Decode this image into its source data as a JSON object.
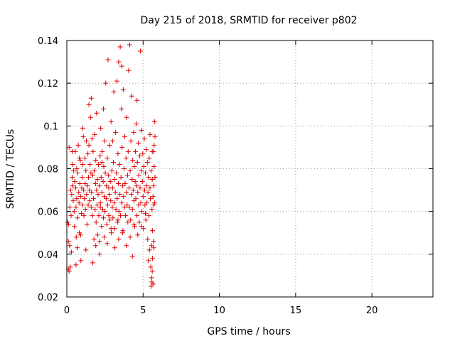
{
  "chart_data": {
    "type": "scatter",
    "title": "Day 215 of 2018, SRMTID for receiver p802",
    "xlabel": "GPS time / hours",
    "ylabel": "SRMTID / TECUs",
    "xlim": [
      0,
      24
    ],
    "ylim": [
      0.02,
      0.14
    ],
    "xticks": [
      0,
      5,
      10,
      15,
      20
    ],
    "xtick_labels": [
      "0",
      "5",
      "10",
      "15",
      "20"
    ],
    "yticks": [
      0.02,
      0.04,
      0.06,
      0.08,
      0.1,
      0.12,
      0.14
    ],
    "ytick_labels": [
      "0.02",
      "0.04",
      "0.06",
      "0.08",
      "0.1",
      "0.12",
      "0.14"
    ],
    "grid": true,
    "marker": "+",
    "series": [
      {
        "name": "SRMTID",
        "color": "#dd0000",
        "points": [
          [
            0.05,
            0.055
          ],
          [
            0.1,
            0.046
          ],
          [
            0.1,
            0.033
          ],
          [
            0.12,
            0.054
          ],
          [
            0.15,
            0.032
          ],
          [
            0.18,
            0.044
          ],
          [
            0.2,
            0.062
          ],
          [
            0.22,
            0.034
          ],
          [
            0.25,
            0.07
          ],
          [
            0.28,
            0.058
          ],
          [
            0.3,
            0.041
          ],
          [
            0.32,
            0.068
          ],
          [
            0.35,
            0.076
          ],
          [
            0.38,
            0.072
          ],
          [
            0.4,
            0.082
          ],
          [
            0.42,
            0.065
          ],
          [
            0.45,
            0.079
          ],
          [
            0.48,
            0.06
          ],
          [
            0.5,
            0.053
          ],
          [
            0.52,
            0.074
          ],
          [
            0.55,
            0.088
          ],
          [
            0.58,
            0.071
          ],
          [
            0.6,
            0.062
          ],
          [
            0.62,
            0.048
          ],
          [
            0.65,
            0.066
          ],
          [
            0.68,
            0.043
          ],
          [
            0.7,
            0.057
          ],
          [
            0.72,
            0.078
          ],
          [
            0.75,
            0.091
          ],
          [
            0.78,
            0.069
          ],
          [
            0.8,
            0.064
          ],
          [
            0.82,
            0.05
          ],
          [
            0.85,
            0.073
          ],
          [
            0.88,
            0.084
          ],
          [
            0.9,
            0.067
          ],
          [
            0.92,
            0.037
          ],
          [
            0.95,
            0.059
          ],
          [
            0.98,
            0.071
          ],
          [
            1.0,
            0.076
          ],
          [
            1.02,
            0.063
          ],
          [
            1.05,
            0.082
          ],
          [
            1.08,
            0.095
          ],
          [
            1.1,
            0.07
          ],
          [
            1.12,
            0.058
          ],
          [
            1.15,
            0.066
          ],
          [
            1.18,
            0.085
          ],
          [
            1.2,
            0.073
          ],
          [
            1.22,
            0.061
          ],
          [
            1.25,
            0.079
          ],
          [
            1.28,
            0.093
          ],
          [
            1.3,
            0.068
          ],
          [
            1.32,
            0.054
          ],
          [
            1.35,
            0.072
          ],
          [
            1.38,
            0.087
          ],
          [
            1.4,
            0.063
          ],
          [
            1.42,
            0.076
          ],
          [
            1.45,
            0.091
          ],
          [
            1.48,
            0.07
          ],
          [
            1.5,
            0.065
          ],
          [
            1.52,
            0.082
          ],
          [
            1.55,
            0.104
          ],
          [
            1.58,
            0.078
          ],
          [
            1.6,
            0.113
          ],
          [
            1.62,
            0.069
          ],
          [
            1.65,
            0.094
          ],
          [
            1.68,
            0.058
          ],
          [
            1.7,
            0.077
          ],
          [
            1.72,
            0.088
          ],
          [
            1.75,
            0.066
          ],
          [
            1.78,
            0.047
          ],
          [
            1.8,
            0.079
          ],
          [
            1.82,
            0.096
          ],
          [
            1.85,
            0.061
          ],
          [
            1.88,
            0.073
          ],
          [
            1.9,
            0.084
          ],
          [
            1.92,
            0.055
          ],
          [
            1.95,
            0.07
          ],
          [
            1.98,
            0.063
          ],
          [
            2.0,
            0.075
          ],
          [
            2.02,
            0.049
          ],
          [
            2.05,
            0.068
          ],
          [
            2.08,
            0.082
          ],
          [
            2.1,
            0.058
          ],
          [
            2.12,
            0.072
          ],
          [
            2.15,
            0.046
          ],
          [
            2.18,
            0.086
          ],
          [
            2.2,
            0.064
          ],
          [
            2.22,
            0.099
          ],
          [
            2.25,
            0.076
          ],
          [
            2.28,
            0.053
          ],
          [
            2.3,
            0.069
          ],
          [
            2.32,
            0.088
          ],
          [
            2.35,
            0.061
          ],
          [
            2.38,
            0.074
          ],
          [
            2.4,
            0.057
          ],
          [
            2.42,
            0.081
          ],
          [
            2.45,
            0.067
          ],
          [
            2.48,
            0.093
          ],
          [
            2.5,
            0.06
          ],
          [
            2.52,
            0.078
          ],
          [
            2.55,
            0.12
          ],
          [
            2.58,
            0.066
          ],
          [
            2.6,
            0.072
          ],
          [
            2.62,
            0.054
          ],
          [
            2.65,
            0.085
          ],
          [
            2.68,
            0.063
          ],
          [
            2.7,
            0.131
          ],
          [
            2.72,
            0.077
          ],
          [
            2.75,
            0.058
          ],
          [
            2.78,
            0.068
          ],
          [
            2.8,
            0.091
          ],
          [
            2.82,
            0.056
          ],
          [
            2.85,
            0.074
          ],
          [
            2.88,
            0.065
          ],
          [
            2.9,
            0.102
          ],
          [
            2.92,
            0.05
          ],
          [
            2.95,
            0.079
          ],
          [
            2.98,
            0.062
          ],
          [
            3.0,
            0.071
          ],
          [
            3.02,
            0.057
          ],
          [
            3.05,
            0.083
          ],
          [
            3.08,
            0.116
          ],
          [
            3.1,
            0.064
          ],
          [
            3.12,
            0.075
          ],
          [
            3.15,
            0.052
          ],
          [
            3.18,
            0.069
          ],
          [
            3.2,
            0.097
          ],
          [
            3.22,
            0.061
          ],
          [
            3.25,
            0.078
          ],
          [
            3.28,
            0.121
          ],
          [
            3.3,
            0.066
          ],
          [
            3.32,
            0.055
          ],
          [
            3.35,
            0.087
          ],
          [
            3.38,
            0.073
          ],
          [
            3.4,
            0.13
          ],
          [
            3.42,
            0.06
          ],
          [
            3.45,
            0.082
          ],
          [
            3.48,
            0.068
          ],
          [
            3.5,
            0.137
          ],
          [
            3.52,
            0.058
          ],
          [
            3.55,
            0.076
          ],
          [
            3.58,
            0.108
          ],
          [
            3.6,
            0.064
          ],
          [
            3.62,
            0.09
          ],
          [
            3.65,
            0.072
          ],
          [
            3.68,
            0.051
          ],
          [
            3.7,
            0.117
          ],
          [
            3.72,
            0.067
          ],
          [
            3.75,
            0.08
          ],
          [
            3.78,
            0.062
          ],
          [
            3.8,
            0.095
          ],
          [
            3.82,
            0.073
          ],
          [
            3.85,
            0.058
          ],
          [
            3.88,
            0.085
          ],
          [
            3.9,
            0.069
          ],
          [
            3.92,
            0.104
          ],
          [
            3.95,
            0.063
          ],
          [
            3.98,
            0.077
          ],
          [
            4.0,
            0.055
          ],
          [
            4.02,
            0.088
          ],
          [
            4.05,
            0.126
          ],
          [
            4.08,
            0.071
          ],
          [
            4.1,
            0.062
          ],
          [
            4.12,
            0.138
          ],
          [
            4.15,
            0.079
          ],
          [
            4.18,
            0.056
          ],
          [
            4.2,
            0.093
          ],
          [
            4.22,
            0.068
          ],
          [
            4.25,
            0.114
          ],
          [
            4.28,
            0.075
          ],
          [
            4.3,
            0.061
          ],
          [
            4.32,
            0.084
          ],
          [
            4.35,
            0.07
          ],
          [
            4.38,
            0.097
          ],
          [
            4.4,
            0.065
          ],
          [
            4.42,
            0.081
          ],
          [
            4.45,
            0.053
          ],
          [
            4.48,
            0.074
          ],
          [
            4.5,
            0.088
          ],
          [
            4.52,
            0.066
          ],
          [
            4.55,
            0.101
          ],
          [
            4.58,
            0.072
          ],
          [
            4.6,
            0.058
          ],
          [
            4.62,
            0.083
          ],
          [
            4.65,
            0.069
          ],
          [
            4.68,
            0.092
          ],
          [
            4.7,
            0.063
          ],
          [
            4.72,
            0.077
          ],
          [
            4.75,
            0.055
          ],
          [
            4.78,
            0.086
          ],
          [
            4.8,
            0.071
          ],
          [
            4.82,
            0.135
          ],
          [
            4.85,
            0.064
          ],
          [
            4.88,
            0.079
          ],
          [
            4.9,
            0.098
          ],
          [
            4.92,
            0.06
          ],
          [
            4.95,
            0.074
          ],
          [
            4.98,
            0.087
          ],
          [
            5.0,
            0.067
          ],
          [
            5.02,
            0.052
          ],
          [
            5.05,
            0.081
          ],
          [
            5.08,
            0.094
          ],
          [
            5.1,
            0.07
          ],
          [
            5.12,
            0.063
          ],
          [
            5.15,
            0.078
          ],
          [
            5.18,
            0.056
          ],
          [
            5.2,
            0.089
          ],
          [
            5.22,
            0.072
          ],
          [
            5.25,
            0.064
          ],
          [
            5.28,
            0.083
          ],
          [
            5.3,
            0.047
          ],
          [
            5.32,
            0.069
          ],
          [
            5.35,
            0.076
          ],
          [
            5.38,
            0.058
          ],
          [
            5.4,
            0.085
          ],
          [
            5.42,
            0.042
          ],
          [
            5.45,
            0.071
          ],
          [
            5.48,
            0.066
          ],
          [
            5.5,
            0.034
          ],
          [
            5.52,
            0.079
          ],
          [
            5.52,
            0.025
          ],
          [
            5.55,
            0.029
          ],
          [
            5.55,
            0.044
          ],
          [
            5.58,
            0.027
          ],
          [
            5.58,
            0.061
          ],
          [
            5.6,
            0.032
          ],
          [
            5.6,
            0.075
          ],
          [
            5.62,
            0.038
          ],
          [
            5.62,
            0.051
          ],
          [
            5.65,
            0.067
          ],
          [
            5.65,
            0.026
          ],
          [
            5.68,
            0.088
          ],
          [
            5.68,
            0.046
          ],
          [
            5.7,
            0.072
          ],
          [
            5.7,
            0.063
          ],
          [
            5.72,
            0.091
          ],
          [
            5.72,
            0.081
          ],
          [
            5.75,
            0.102
          ],
          [
            5.75,
            0.064
          ],
          [
            5.78,
            0.076
          ],
          [
            0.15,
            0.09
          ],
          [
            0.35,
            0.088
          ],
          [
            0.6,
            0.035
          ],
          [
            0.82,
            0.085
          ],
          [
            1.05,
            0.099
          ],
          [
            1.25,
            0.042
          ],
          [
            1.45,
            0.11
          ],
          [
            1.7,
            0.036
          ],
          [
            1.95,
            0.106
          ],
          [
            2.15,
            0.04
          ],
          [
            2.4,
            0.108
          ],
          [
            2.65,
            0.045
          ],
          [
            2.9,
            0.052
          ],
          [
            3.15,
            0.043
          ],
          [
            3.4,
            0.047
          ],
          [
            3.65,
            0.05
          ],
          [
            3.9,
            0.044
          ],
          [
            4.15,
            0.048
          ],
          [
            4.4,
            0.054
          ],
          [
            4.65,
            0.049
          ],
          [
            4.9,
            0.053
          ],
          [
            5.15,
            0.059
          ],
          [
            5.35,
            0.037
          ],
          [
            5.45,
            0.096
          ],
          [
            5.6,
            0.088
          ],
          [
            5.7,
            0.043
          ],
          [
            5.78,
            0.095
          ],
          [
            3.0,
            0.093
          ],
          [
            3.6,
            0.128
          ],
          [
            4.6,
            0.112
          ],
          [
            2.2,
            0.062
          ],
          [
            2.3,
            0.083
          ],
          [
            2.75,
            0.071
          ],
          [
            2.45,
            0.048
          ],
          [
            1.6,
            0.062
          ],
          [
            1.9,
            0.044
          ],
          [
            0.65,
            0.08
          ],
          [
            0.9,
            0.049
          ],
          [
            3.35,
            0.056
          ],
          [
            4.3,
            0.039
          ]
        ]
      }
    ]
  }
}
